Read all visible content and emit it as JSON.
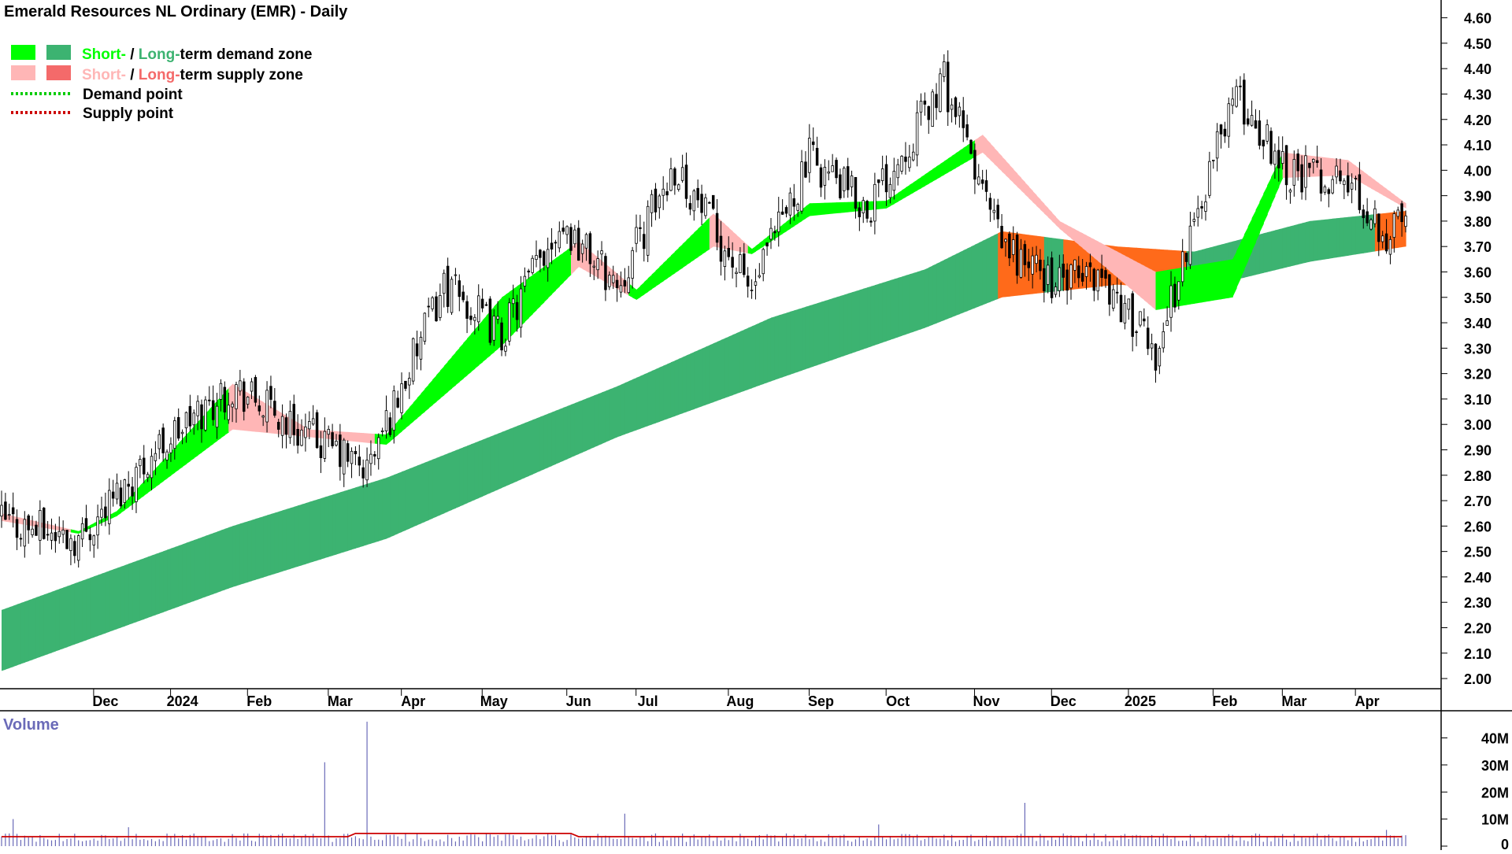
{
  "header": {
    "title": "Emerald Resources NL Ordinary (EMR) - Daily"
  },
  "legend": {
    "row1_short": "Short-",
    "row1_sep": " / ",
    "row1_long": "Long-",
    "row1_rest": "term demand zone",
    "row2_short": "Short-",
    "row2_sep": " / ",
    "row2_long": "Long-",
    "row2_rest": "term supply zone",
    "row3": "Demand point",
    "row4": "Supply point"
  },
  "volume_panel": {
    "title": "Volume"
  },
  "colors": {
    "short_demand": "#00ff00",
    "long_demand": "#3cb371",
    "short_supply": "#ffb6b6",
    "long_supply": "#ff6a1a",
    "demand_point": "#00cc00",
    "supply_point": "#cc0000",
    "candle_up": "#ffffff",
    "candle_down": "#000000",
    "volume_bar": "#6a6ab8",
    "volume_ma": "#cc0000"
  },
  "chart_data": {
    "type": "candlestick",
    "title": "Emerald Resources NL Ordinary (EMR) - Daily",
    "x_ticks": [
      "Dec",
      "2024",
      "Feb",
      "Mar",
      "Apr",
      "May",
      "Jun",
      "Jul",
      "Aug",
      "Sep",
      "Oct",
      "Nov",
      "Dec",
      "2025",
      "Feb",
      "Mar",
      "Apr"
    ],
    "y_ticks": [
      "4.60",
      "4.50",
      "4.40",
      "4.30",
      "4.20",
      "4.10",
      "4.00",
      "3.90",
      "3.80",
      "3.70",
      "3.60",
      "3.50",
      "3.40",
      "3.30",
      "3.20",
      "3.10",
      "3.00",
      "2.90",
      "2.80",
      "2.70",
      "2.60",
      "2.50",
      "2.40",
      "2.30",
      "2.20",
      "2.10",
      "2.00"
    ],
    "ylim": [
      1.96,
      4.67
    ],
    "volume_ticks": [
      "40M",
      "30M",
      "20M",
      "10M",
      "0"
    ],
    "volume_ylim": [
      0,
      48
    ],
    "price_anchors": [
      {
        "t": 0,
        "close": 2.62
      },
      {
        "t": 20,
        "close": 2.55
      },
      {
        "t": 40,
        "close": 2.9
      },
      {
        "t": 60,
        "close": 3.15
      },
      {
        "t": 75,
        "close": 3.0
      },
      {
        "t": 95,
        "close": 2.82
      },
      {
        "t": 115,
        "close": 3.55
      },
      {
        "t": 130,
        "close": 3.35
      },
      {
        "t": 145,
        "close": 3.8
      },
      {
        "t": 160,
        "close": 3.55
      },
      {
        "t": 175,
        "close": 4.02
      },
      {
        "t": 195,
        "close": 3.52
      },
      {
        "t": 210,
        "close": 4.05
      },
      {
        "t": 225,
        "close": 3.85
      },
      {
        "t": 245,
        "close": 4.35
      },
      {
        "t": 260,
        "close": 3.7
      },
      {
        "t": 275,
        "close": 3.55
      },
      {
        "t": 285,
        "close": 3.6
      },
      {
        "t": 300,
        "close": 3.28
      },
      {
        "t": 320,
        "close": 4.3
      },
      {
        "t": 335,
        "close": 4.0
      },
      {
        "t": 350,
        "close": 3.95
      },
      {
        "t": 360,
        "close": 3.75
      },
      {
        "t": 365,
        "close": 3.82
      }
    ],
    "long_term_zone": [
      {
        "t": 0,
        "upper": 2.27,
        "lower": 2.03
      },
      {
        "t": 60,
        "upper": 2.6,
        "lower": 2.36
      },
      {
        "t": 100,
        "upper": 2.79,
        "lower": 2.55
      },
      {
        "t": 160,
        "upper": 3.15,
        "lower": 2.95
      },
      {
        "t": 200,
        "upper": 3.42,
        "lower": 3.17
      },
      {
        "t": 240,
        "upper": 3.61,
        "lower": 3.38
      },
      {
        "t": 260,
        "upper": 3.76,
        "lower": 3.5
      },
      {
        "t": 290,
        "upper": 3.7,
        "lower": 3.55
      },
      {
        "t": 310,
        "upper": 3.68,
        "lower": 3.53
      },
      {
        "t": 340,
        "upper": 3.8,
        "lower": 3.64
      },
      {
        "t": 365,
        "upper": 3.84,
        "lower": 3.7
      }
    ],
    "short_term_zone": [
      {
        "t": 0,
        "upper": 2.65,
        "lower": 2.62
      },
      {
        "t": 20,
        "upper": 2.58,
        "lower": 2.57
      },
      {
        "t": 30,
        "upper": 2.66,
        "lower": 2.64
      },
      {
        "t": 60,
        "upper": 3.16,
        "lower": 2.98
      },
      {
        "t": 80,
        "upper": 2.98,
        "lower": 2.95
      },
      {
        "t": 100,
        "upper": 2.96,
        "lower": 2.92
      },
      {
        "t": 130,
        "upper": 3.5,
        "lower": 3.31
      },
      {
        "t": 150,
        "upper": 3.72,
        "lower": 3.62
      },
      {
        "t": 165,
        "upper": 3.53,
        "lower": 3.49
      },
      {
        "t": 185,
        "upper": 3.83,
        "lower": 3.7
      },
      {
        "t": 195,
        "upper": 3.69,
        "lower": 3.67
      },
      {
        "t": 210,
        "upper": 3.87,
        "lower": 3.82
      },
      {
        "t": 230,
        "upper": 3.88,
        "lower": 3.85
      },
      {
        "t": 255,
        "upper": 4.14,
        "lower": 4.07
      },
      {
        "t": 275,
        "upper": 3.8,
        "lower": 3.77
      },
      {
        "t": 300,
        "upper": 3.6,
        "lower": 3.45
      },
      {
        "t": 320,
        "upper": 3.65,
        "lower": 3.5
      },
      {
        "t": 333,
        "upper": 4.07,
        "lower": 3.97
      },
      {
        "t": 350,
        "upper": 4.04,
        "lower": 3.98
      },
      {
        "t": 365,
        "upper": 3.87,
        "lower": 3.85
      }
    ],
    "volume_spikes": [
      {
        "t": 84,
        "value": 31
      },
      {
        "t": 95,
        "value": 46
      },
      {
        "t": 162,
        "value": 12
      },
      {
        "t": 266,
        "value": 16
      },
      {
        "t": 228,
        "value": 8
      },
      {
        "t": 3,
        "value": 10
      },
      {
        "t": 33,
        "value": 7
      },
      {
        "t": 360,
        "value": 6
      }
    ],
    "volume_ma_level": 3.5
  }
}
